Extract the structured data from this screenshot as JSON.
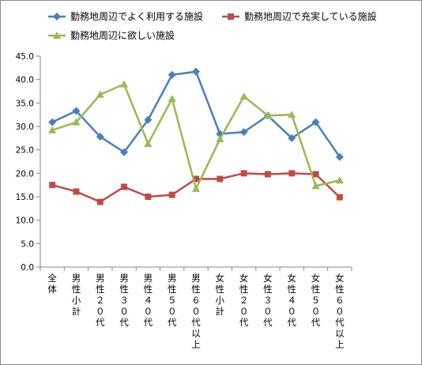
{
  "chart_data": {
    "type": "line",
    "categories": [
      "全体",
      "男性小計",
      "男性20代",
      "男性30代",
      "男性40代",
      "男性50代",
      "男性60代以上",
      "女性小計",
      "女性20代",
      "女性30代",
      "女性40代",
      "女性50代",
      "女性60代以上"
    ],
    "category_labels": [
      "全\n体",
      "男\n性\n小\n計",
      "男\n性\n２\n０\n代",
      "男\n性\n３\n０\n代",
      "男\n性\n４\n０\n代",
      "男\n性\n５\n０\n代",
      "男\n性\n６\n０\n代\n以\n上",
      "女\n性\n小\n計",
      "女\n性\n２\n０\n代",
      "女\n性\n３\n０\n代",
      "女\n性\n４\n０\n代",
      "女\n性\n５\n０\n代",
      "女\n性\n６\n０\n代\n以\n上"
    ],
    "series": [
      {
        "name": "勤務地周辺でよく利用する施設",
        "color": "#4a7ebb",
        "marker": "diamond",
        "values": [
          30.9,
          33.3,
          27.8,
          24.5,
          31.4,
          41.0,
          41.7,
          28.4,
          28.8,
          32.3,
          27.5,
          30.9,
          23.5
        ]
      },
      {
        "name": "勤務地周辺で充実している施設",
        "color": "#be4b48",
        "marker": "square",
        "values": [
          17.5,
          16.1,
          13.9,
          17.1,
          15.0,
          15.4,
          18.8,
          18.8,
          20.0,
          19.8,
          20.0,
          19.8,
          14.9
        ]
      },
      {
        "name": "勤務地周辺に欲しい施設",
        "color": "#98b954",
        "marker": "triangle",
        "values": [
          29.2,
          30.9,
          36.8,
          39.0,
          26.3,
          35.9,
          16.7,
          27.3,
          36.4,
          32.3,
          32.5,
          17.3,
          18.5
        ]
      }
    ],
    "ylim": [
      0,
      45
    ],
    "ytick_labels": [
      "0.0",
      "5.0",
      "10.0",
      "15.0",
      "20.0",
      "25.0",
      "30.0",
      "35.0",
      "40.0",
      "45.0"
    ],
    "legend": "top",
    "grid": false
  }
}
